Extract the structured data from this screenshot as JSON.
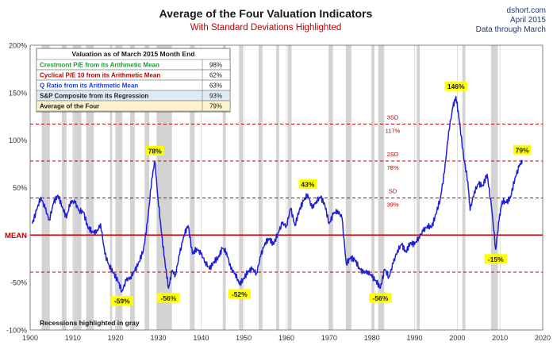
{
  "chart_data": {
    "type": "line",
    "title": "Average of the Four Valuation Indicators",
    "subtitle": "With Standard Deviations Highlighted",
    "source": [
      "dshort.com",
      "April 2015",
      "Data through March"
    ],
    "xlim": [
      1900,
      2020
    ],
    "x_ticks": [
      1900,
      1910,
      1920,
      1930,
      1940,
      1950,
      1960,
      1970,
      1980,
      1990,
      2000,
      2010,
      2020
    ],
    "ylim": [
      -100,
      200
    ],
    "y_ticks": [
      {
        "value": 200,
        "label": "200%"
      },
      {
        "value": 150,
        "label": "150%"
      },
      {
        "value": 100,
        "label": "100%"
      },
      {
        "value": 50,
        "label": "50%"
      },
      {
        "value": 0,
        "label": "MEAN"
      },
      {
        "value": -50,
        "label": "-50%"
      },
      {
        "value": -100,
        "label": "-100%"
      }
    ],
    "grid": "vertical",
    "mean_line": 0,
    "sd_lines": [
      {
        "value": 117,
        "label_top": "3SD",
        "label_bottom": "117%"
      },
      {
        "value": 78,
        "label_top": "2SD",
        "label_bottom": "78%"
      },
      {
        "value": 39,
        "label_top": "SD",
        "label_bottom": "39%"
      },
      {
        "value": -39,
        "label_top": "",
        "label_bottom": ""
      }
    ],
    "recessions": [
      [
        1902.7,
        1904.6
      ],
      [
        1907.4,
        1908.5
      ],
      [
        1910.1,
        1912.0
      ],
      [
        1913.1,
        1914.9
      ],
      [
        1918.7,
        1919.2
      ],
      [
        1920.1,
        1921.6
      ],
      [
        1923.4,
        1924.5
      ],
      [
        1926.8,
        1927.9
      ],
      [
        1929.6,
        1933.2
      ],
      [
        1937.4,
        1938.5
      ],
      [
        1945.1,
        1945.8
      ],
      [
        1948.9,
        1949.8
      ],
      [
        1953.5,
        1954.4
      ],
      [
        1957.6,
        1958.3
      ],
      [
        1960.3,
        1961.2
      ],
      [
        1969.9,
        1970.9
      ],
      [
        1973.9,
        1975.2
      ],
      [
        1980.0,
        1980.6
      ],
      [
        1981.5,
        1982.9
      ],
      [
        1990.5,
        1991.2
      ],
      [
        2001.2,
        2001.9
      ],
      [
        2007.9,
        2009.5
      ]
    ],
    "series": [
      {
        "color": "#1f1fd6",
        "points": [
          [
            1900.5,
            12
          ],
          [
            1901.5,
            26
          ],
          [
            1902.5,
            40
          ],
          [
            1903.5,
            28
          ],
          [
            1904.5,
            16
          ],
          [
            1905.5,
            34
          ],
          [
            1906.5,
            42
          ],
          [
            1907.5,
            30
          ],
          [
            1908.5,
            18
          ],
          [
            1909.5,
            36
          ],
          [
            1910.5,
            34
          ],
          [
            1911.5,
            26
          ],
          [
            1912.5,
            24
          ],
          [
            1913.5,
            8
          ],
          [
            1914.5,
            4
          ],
          [
            1915.5,
            2
          ],
          [
            1916.5,
            12
          ],
          [
            1917.5,
            -20
          ],
          [
            1918.5,
            -32
          ],
          [
            1919.5,
            -40
          ],
          [
            1920.5,
            -48
          ],
          [
            1921.5,
            -59
          ],
          [
            1922.5,
            -48
          ],
          [
            1923.5,
            -44
          ],
          [
            1924.5,
            -38
          ],
          [
            1925.5,
            -28
          ],
          [
            1926.5,
            -16
          ],
          [
            1927.5,
            14
          ],
          [
            1928.5,
            60
          ],
          [
            1929.2,
            78
          ],
          [
            1929.9,
            40
          ],
          [
            1930.8,
            0
          ],
          [
            1931.6,
            -30
          ],
          [
            1932.4,
            -56
          ],
          [
            1933.2,
            -38
          ],
          [
            1934.0,
            -42
          ],
          [
            1935.0,
            -20
          ],
          [
            1936.0,
            0
          ],
          [
            1937.0,
            10
          ],
          [
            1938.0,
            -20
          ],
          [
            1939.0,
            -14
          ],
          [
            1940.0,
            -20
          ],
          [
            1941.0,
            -28
          ],
          [
            1942.0,
            -36
          ],
          [
            1943.0,
            -28
          ],
          [
            1944.0,
            -24
          ],
          [
            1945.0,
            -14
          ],
          [
            1946.0,
            -18
          ],
          [
            1947.0,
            -36
          ],
          [
            1948.0,
            -40
          ],
          [
            1949.0,
            -52
          ],
          [
            1950.0,
            -46
          ],
          [
            1951.0,
            -38
          ],
          [
            1952.0,
            -36
          ],
          [
            1953.0,
            -40
          ],
          [
            1954.0,
            -22
          ],
          [
            1955.0,
            -8
          ],
          [
            1956.0,
            -4
          ],
          [
            1957.0,
            -10
          ],
          [
            1958.0,
            2
          ],
          [
            1959.0,
            12
          ],
          [
            1960.0,
            10
          ],
          [
            1961.0,
            28
          ],
          [
            1962.0,
            10
          ],
          [
            1963.0,
            26
          ],
          [
            1964.0,
            36
          ],
          [
            1965.0,
            43
          ],
          [
            1966.0,
            28
          ],
          [
            1967.0,
            36
          ],
          [
            1968.0,
            40
          ],
          [
            1969.0,
            32
          ],
          [
            1970.0,
            12
          ],
          [
            1971.0,
            22
          ],
          [
            1972.0,
            26
          ],
          [
            1973.0,
            18
          ],
          [
            1974.0,
            -30
          ],
          [
            1975.0,
            -24
          ],
          [
            1976.0,
            -26
          ],
          [
            1977.0,
            -34
          ],
          [
            1978.0,
            -40
          ],
          [
            1979.0,
            -38
          ],
          [
            1980.0,
            -44
          ],
          [
            1981.0,
            -48
          ],
          [
            1982.0,
            -56
          ],
          [
            1983.0,
            -36
          ],
          [
            1984.0,
            -44
          ],
          [
            1985.0,
            -30
          ],
          [
            1986.0,
            -16
          ],
          [
            1987.0,
            -10
          ],
          [
            1988.0,
            -18
          ],
          [
            1989.0,
            -8
          ],
          [
            1990.0,
            -10
          ],
          [
            1991.0,
            -2
          ],
          [
            1992.0,
            4
          ],
          [
            1993.0,
            10
          ],
          [
            1994.0,
            8
          ],
          [
            1995.0,
            22
          ],
          [
            1996.0,
            38
          ],
          [
            1997.0,
            66
          ],
          [
            1998.0,
            110
          ],
          [
            1999.0,
            135
          ],
          [
            1999.7,
            146
          ],
          [
            2000.5,
            120
          ],
          [
            2001.5,
            82
          ],
          [
            2002.5,
            56
          ],
          [
            2003.0,
            26
          ],
          [
            2004.0,
            46
          ],
          [
            2005.0,
            54
          ],
          [
            2006.0,
            52
          ],
          [
            2007.0,
            64
          ],
          [
            2008.0,
            30
          ],
          [
            2009.0,
            -15
          ],
          [
            2009.8,
            16
          ],
          [
            2010.5,
            36
          ],
          [
            2011.5,
            34
          ],
          [
            2012.5,
            40
          ],
          [
            2013.5,
            60
          ],
          [
            2014.5,
            72
          ],
          [
            2015.2,
            79
          ]
        ]
      }
    ],
    "annotations": [
      {
        "x": 1929.2,
        "y": 78,
        "label": "78%",
        "position": "above"
      },
      {
        "x": 1921.5,
        "y": -59,
        "label": "-59%",
        "position": "below"
      },
      {
        "x": 1932.4,
        "y": -56,
        "label": "-56%",
        "position": "below"
      },
      {
        "x": 1949.0,
        "y": -52,
        "label": "-52%",
        "position": "below"
      },
      {
        "x": 1965.0,
        "y": 43,
        "label": "43%",
        "position": "above"
      },
      {
        "x": 1982.0,
        "y": -56,
        "label": "-56%",
        "position": "below"
      },
      {
        "x": 1999.7,
        "y": 146,
        "label": "146%",
        "position": "above"
      },
      {
        "x": 2009.0,
        "y": -15,
        "label": "-15%",
        "position": "below"
      },
      {
        "x": 2015.2,
        "y": 79,
        "label": "79%",
        "position": "above"
      }
    ],
    "table": {
      "header": "Valuation as of March 2015 Month End",
      "rows": [
        {
          "label": "Crestmont P/E from its Arithmetic Mean",
          "value": "98%",
          "color": "#1f9a3a"
        },
        {
          "label": "Cyclical P/E 10 from its Arithmetic Mean",
          "value": "62%",
          "color": "#c00000"
        },
        {
          "label": "Q Ratio from its Arithmetic Mean",
          "value": "63%",
          "color": "#1f3fd6"
        },
        {
          "label": "S&P Composite from its Regression",
          "value": "93%",
          "color": "#222222"
        },
        {
          "label": "Average of the Four",
          "value": "79%",
          "color": "#222222"
        }
      ]
    },
    "footnote": "Recessions highlighted in gray"
  },
  "colors": {
    "title": "#1a1a1a",
    "subtitle": "#c00000",
    "sd_line": "#c00000",
    "mean_line": "#c00000",
    "recession": "#d3d3d3",
    "series": "#1f1fd6",
    "annotation_fill": "#ffff00",
    "source": "#1f3a7a"
  }
}
